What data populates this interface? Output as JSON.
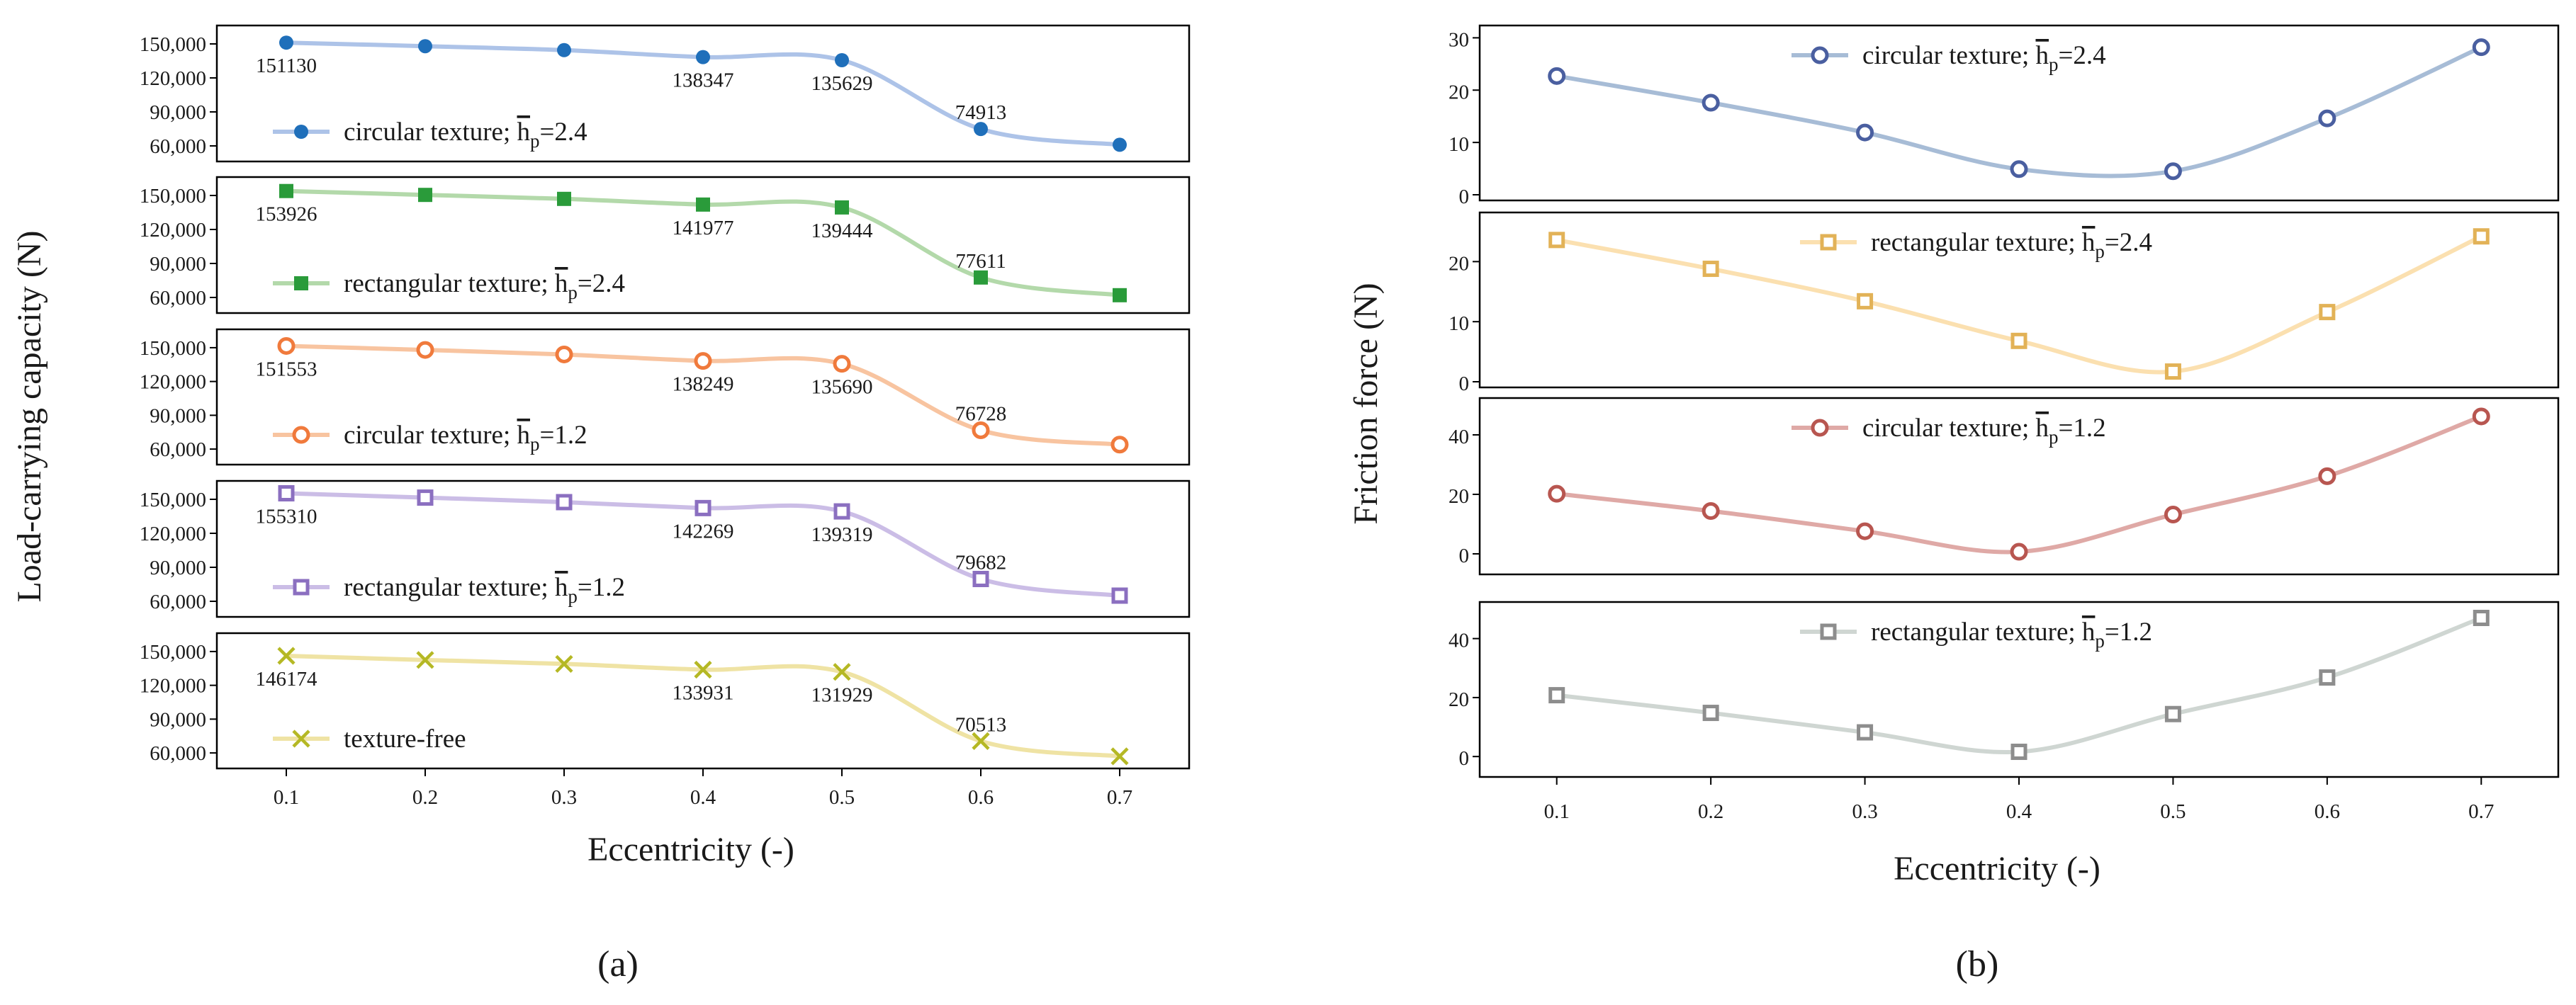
{
  "chart_data": [
    {
      "type": "line",
      "panel_label": "(a)",
      "xlabel": "Eccentricity (-)",
      "ylabel": "Load-carrying capacity (N)",
      "x": [
        0.1,
        0.2,
        0.3,
        0.4,
        0.5,
        0.6,
        0.7
      ],
      "x_ticks": [
        "0.1",
        "0.2",
        "0.3",
        "0.4",
        "0.5",
        "0.6",
        "0.7"
      ],
      "xlim": [
        0.05,
        0.75
      ],
      "ylim": [
        50000,
        160000
      ],
      "y_ticks": [
        "60,000",
        "90,000",
        "120,000",
        "150,000"
      ],
      "grid": false,
      "series": [
        {
          "name": "circular texture; h̄p=2.4",
          "legend_text": "circular texture; ",
          "legend_var": "h",
          "legend_sub": "p",
          "legend_value": "=2.4",
          "marker": "filled-circle",
          "color": "#1f6fba",
          "line_color": "#adc3e8",
          "values": [
            151130,
            148000,
            144500,
            138347,
            135629,
            74913,
            61000
          ],
          "labels": [
            "151130",
            "",
            "",
            "138347",
            "135629",
            "74913",
            ""
          ]
        },
        {
          "name": "rectangular texture; h̄p=2.4",
          "legend_text": "rectangular texture; ",
          "legend_var": "h",
          "legend_sub": "p",
          "legend_value": "=2.4",
          "marker": "filled-square",
          "color": "#2a9b3a",
          "line_color": "#b3d9aa",
          "values": [
            153926,
            150500,
            147000,
            141977,
            139444,
            77611,
            62000
          ],
          "labels": [
            "153926",
            "",
            "",
            "141977",
            "139444",
            "77611",
            ""
          ]
        },
        {
          "name": "circular texture; h̄p=1.2",
          "legend_text": "circular texture; ",
          "legend_var": "h",
          "legend_sub": "p",
          "legend_value": "=1.2",
          "marker": "open-circle",
          "color": "#f07a3c",
          "line_color": "#f8c4a0",
          "values": [
            151553,
            148000,
            144000,
            138249,
            135690,
            76728,
            64000
          ],
          "labels": [
            "151553",
            "",
            "",
            "138249",
            "135690",
            "76728",
            ""
          ]
        },
        {
          "name": "rectangular texture; h̄p=1.2",
          "legend_text": "rectangular texture; ",
          "legend_var": "h",
          "legend_sub": "p",
          "legend_value": "=1.2",
          "marker": "open-square",
          "color": "#8b6fc0",
          "line_color": "#cbbde6",
          "values": [
            155310,
            151500,
            147500,
            142269,
            139319,
            79682,
            65000
          ],
          "labels": [
            "155310",
            "",
            "",
            "142269",
            "139319",
            "79682",
            ""
          ]
        },
        {
          "name": "texture-free",
          "legend_text": "texture-free",
          "legend_var": "",
          "legend_sub": "",
          "legend_value": "",
          "marker": "x",
          "color": "#b5b824",
          "line_color": "#efe3a4",
          "values": [
            146174,
            142500,
            139000,
            133931,
            131929,
            70513,
            57000
          ],
          "labels": [
            "146174",
            "",
            "",
            "133931",
            "131929",
            "70513",
            ""
          ]
        }
      ]
    },
    {
      "type": "line",
      "panel_label": "(b)",
      "xlabel": "Eccentricity (-)",
      "ylabel": "Friction force (N)",
      "x": [
        0.1,
        0.2,
        0.3,
        0.4,
        0.5,
        0.6,
        0.7
      ],
      "x_ticks": [
        "0.1",
        "0.2",
        "0.3",
        "0.4",
        "0.5",
        "0.6",
        "0.7"
      ],
      "xlim": [
        0.05,
        0.75
      ],
      "grid": false,
      "series": [
        {
          "name": "circular texture; h̄p=2.4",
          "legend_text": "circular texture; ",
          "legend_var": "h",
          "legend_sub": "p",
          "legend_value": "=2.4",
          "marker": "open-circle",
          "color": "#4a5fa0",
          "line_color": "#a7bcd6",
          "values": [
            22.7,
            17.6,
            11.9,
            4.9,
            4.5,
            14.6,
            28.2
          ],
          "ylim": [
            0,
            31
          ],
          "y_ticks": [
            0,
            10,
            20,
            30
          ]
        },
        {
          "name": "rectangular texture; h̄p=2.4",
          "legend_text": "rectangular texture; ",
          "legend_var": "h",
          "legend_sub": "p",
          "legend_value": "=2.4",
          "marker": "open-square",
          "color": "#e2b257",
          "line_color": "#fbe0b0",
          "values": [
            23.6,
            18.8,
            13.4,
            6.8,
            1.7,
            11.6,
            24.2
          ],
          "ylim": [
            0,
            27
          ],
          "y_ticks": [
            0,
            10,
            20
          ]
        },
        {
          "name": "circular texture; h̄p=1.2",
          "legend_text": "circular texture; ",
          "legend_var": "h",
          "legend_sub": "p",
          "legend_value": "=1.2",
          "marker": "open-circle",
          "color": "#b85650",
          "line_color": "#dfa9a6",
          "values": [
            20.2,
            14.4,
            7.6,
            0.7,
            13.2,
            26.1,
            46.2
          ],
          "ylim": [
            -5,
            50
          ],
          "y_ticks": [
            0,
            20,
            40
          ]
        },
        {
          "name": "rectangular texture; h̄p=1.2",
          "legend_text": "rectangular texture; ",
          "legend_var": "h",
          "legend_sub": "p",
          "legend_value": "=1.2",
          "marker": "open-square",
          "color": "#8d8d8d",
          "line_color": "#cfd6d2",
          "values": [
            20.8,
            14.8,
            8.2,
            1.6,
            14.4,
            26.8,
            47.0
          ],
          "ylim": [
            -5,
            50
          ],
          "y_ticks": [
            0,
            20,
            40
          ]
        }
      ]
    }
  ]
}
